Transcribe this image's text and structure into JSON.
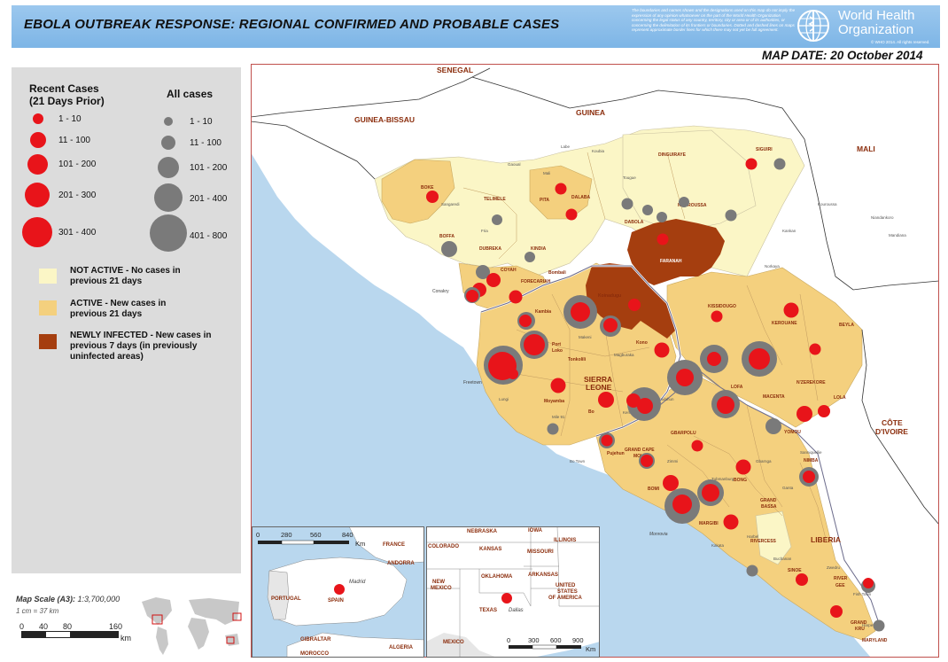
{
  "header": {
    "title": "EBOLA OUTBREAK RESPONSE: REGIONAL CONFIRMED AND PROBABLE CASES",
    "disclaimer": "The boundaries and names shown and the designations used on this map do not imply the expression of any opinion whatsoever on the part of the World Health Organization concerning the legal status of any country, territory, city or area or of its authorities, or concerning the delimitation of its frontiers or boundaries. Dotted and dashed lines on maps represent approximate border lines for which there may not yet be full agreement.",
    "org_line1": "World Health",
    "org_line2": "Organization",
    "copyright": "© WHO 2014. All rights reserved."
  },
  "map_date": "MAP DATE: 20 October 2014",
  "legend": {
    "recent_title_1": "Recent Cases",
    "recent_title_2": "(21 Days Prior)",
    "all_title": "All cases",
    "recent": [
      "1 - 10",
      "11 - 100",
      "101 - 200",
      "201 - 300",
      "301 - 400"
    ],
    "all": [
      "1 - 10",
      "11 - 100",
      "101 - 200",
      "201 - 400",
      "401 - 800"
    ],
    "status": [
      {
        "line1": "NOT ACTIVE - No cases in",
        "line2": "previous 21 days",
        "line3": "",
        "color": "#fbf6c6"
      },
      {
        "line1": "ACTIVE - New cases in",
        "line2": "previous 21 days",
        "line3": "",
        "color": "#f4d07e"
      },
      {
        "line1": "NEWLY INFECTED - New cases in",
        "line2": "previous  7 days (in previously",
        "line3": "uninfected areas)",
        "color": "#a53e0f"
      }
    ]
  },
  "scale": {
    "title_prefix": "Map Scale (A3): ",
    "title_value": "1:3,700,000",
    "subtitle": "1 cm = 37 km",
    "ticks": [
      "0",
      "40",
      "80",
      "160"
    ],
    "unit": "km"
  },
  "colors": {
    "sea": "#b9d7ee",
    "land_other": "#ffffff",
    "not_active": "#fbf6c6",
    "active": "#f4d07e",
    "newly_infected": "#a53e0f",
    "recent_dot": "#e8141a",
    "all_dot": "#7a7a7a",
    "label": "#8b2d0c"
  },
  "map_labels": {
    "countries": {
      "senegal": "SENEGAL",
      "guinea_bissau": "GUINEA-BISSAU",
      "guinea": "GUINEA",
      "mali": "MALI",
      "sierra_leone_1": "SIERRA",
      "sierra_leone_2": "LEONE",
      "liberia": "LIBERIA",
      "cote_1": "CÔTE",
      "cote_2": "D'IVOIRE"
    },
    "districts": {
      "boke": "BOKE",
      "telimele": "TELIMELE",
      "pita": "PITA",
      "dalaba": "DALABA",
      "dinguiraye": "DINGUIRAYE",
      "siguiri": "SIGUIRI",
      "kouroussa": "KOUROUSSA",
      "dabola": "DABOLA",
      "faranah": "FARANAH",
      "boffa": "BOFFA",
      "dubreka": "DUBREKA",
      "kindia": "KINDIA",
      "coyah": "COYAH",
      "forecariah": "FORECARIAH",
      "conakry": "Conakry",
      "bombali": "Bombali",
      "koinadugu": "Koinadugu",
      "kambia": "Kambia",
      "port": "Port",
      "loko": "Loko",
      "tonkolili": "Tonkolili",
      "kono": "Kono",
      "freetown": "Freetown",
      "moyamba": "Moyamba",
      "bo": "Bo",
      "pujehun": "Pujehun",
      "kissidougo": "KISSIDOUGO",
      "kerouane": "KEROUANE",
      "beyla": "BEYLA",
      "nzerekore": "N'ZEREKORE",
      "macenta": "MACENTA",
      "lola": "LOLA",
      "yomou": "YOMOU",
      "lofa": "LOFA",
      "gbarpolu": "GBARPOLU",
      "grand_cape_1": "GRAND CAPE",
      "grand_cape_2": "MOUNT",
      "bomi": "BOMI",
      "bong": "BONG",
      "nimba": "NIMBA",
      "margibi": "MARGIBI",
      "grand_bassa_1": "GRAND",
      "grand_bassa_2": "BASSA",
      "rivercess": "RIVERCESS",
      "monrovia": "Monrovia",
      "sinoe": "SINOE",
      "river_gee_1": "RIVER",
      "river_gee_2": "GEE",
      "grand_kru_1": "GRAND",
      "grand_kru_2": "KRU",
      "maryland": "MARYLAND"
    }
  },
  "inset_spain": {
    "ticks": [
      "0",
      "280",
      "560",
      "840"
    ],
    "unit": "Km",
    "labels": {
      "france": "FRANCE",
      "andorra": "ANDORRA",
      "portugal": "PORTUGAL",
      "spain": "SPAIN",
      "madrid": "Madrid",
      "gibraltar": "GIBRALTAR",
      "algeria": "ALGERIA",
      "morocco": "MOROCCO"
    }
  },
  "inset_usa": {
    "ticks": [
      "0",
      "300",
      "600",
      "900"
    ],
    "unit": "Km",
    "labels": {
      "nebraska": "NEBRASKA",
      "iowa": "IOWA",
      "colorado": "COLORADO",
      "kansas": "KANSAS",
      "missouri": "MISSOURI",
      "illinois": "ILLINOIS",
      "new_mexico_1": "NEW",
      "new_mexico_2": "MEXICO",
      "oklahoma": "OKLAHOMA",
      "arkansas": "ARKANSAS",
      "usa_1": "UNITED",
      "usa_2": "STATES",
      "usa_3": "OF AMERICA",
      "texas": "TEXAS",
      "dallas": "Dallas",
      "mexico": "MEXICO"
    }
  }
}
